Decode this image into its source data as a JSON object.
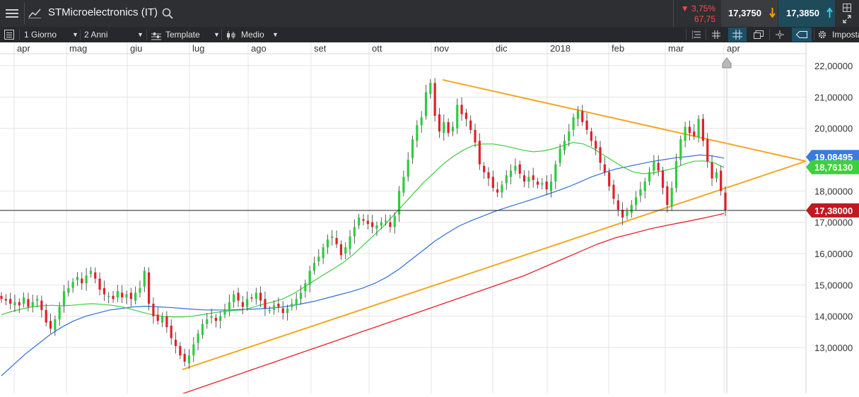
{
  "header": {
    "instrument_title": "STMicroelectronics (IT)",
    "change_percent": "▼ 3,75%",
    "change_value": "67,75",
    "sell_price": "17,3750",
    "buy_price": "17,3850",
    "icons": [
      "menu-icon",
      "chart-line-icon",
      "search-icon",
      "arrow-down-icon",
      "arrow-up-icon",
      "grid-icon",
      "expand-icon"
    ]
  },
  "toolbar": {
    "interval": "1 Giorno",
    "range": "2 Anni",
    "template": "Template",
    "indicator": "Medio",
    "settings": "Imposta"
  },
  "colors": {
    "up_candle": "#2ecc40",
    "down_candle": "#e0202a",
    "trendline": "#f5a623",
    "ma_green": "#3ecf3e",
    "ma_blue": "#2f6fd8",
    "ma_red": "#e8202a",
    "price_line": "#222222"
  },
  "chart_data": {
    "type": "candlestick",
    "x_labels": [
      "apr",
      "mag",
      "giu",
      "lug",
      "ago",
      "set",
      "ott",
      "nov",
      "dic",
      "2018",
      "feb",
      "mar",
      "apr"
    ],
    "y_ticks": [
      "22,00000",
      "21,00000",
      "20,00000",
      "18,00000",
      "16,00000",
      "15,00000",
      "14,00000",
      "13,00000",
      "17,00000"
    ],
    "y_tick_values": [
      22,
      21,
      20,
      18,
      16,
      15,
      14,
      13,
      17
    ],
    "ylim": [
      12.2,
      22.5
    ],
    "grid": true,
    "price_labels": [
      {
        "text": "19,08495",
        "value": 19.085,
        "color": "#3a7be0"
      },
      {
        "text": "18,76130",
        "value": 18.76,
        "color": "#3ecf3e"
      },
      {
        "text": "17,38000",
        "value": 17.38,
        "color": "#c0191f"
      }
    ],
    "current_price": 17.38,
    "closes": [
      14.55,
      14.5,
      14.4,
      14.45,
      14.35,
      14.6,
      14.3,
      14.45,
      14.55,
      14.2,
      13.8,
      13.6,
      13.9,
      14.3,
      14.8,
      14.9,
      15.1,
      15.25,
      15.05,
      15.3,
      15.45,
      15.2,
      14.85,
      14.7,
      14.65,
      14.55,
      14.8,
      14.6,
      14.7,
      14.55,
      14.75,
      14.9,
      15.45,
      14.4,
      14.0,
      13.85,
      14.0,
      13.65,
      13.3,
      13.05,
      12.75,
      12.55,
      12.75,
      13.1,
      13.45,
      13.75,
      13.9,
      14.0,
      13.85,
      14.0,
      14.2,
      14.45,
      14.7,
      14.5,
      14.3,
      14.55,
      14.6,
      14.75,
      14.5,
      14.25,
      14.2,
      14.35,
      14.3,
      14.1,
      14.25,
      14.4,
      14.55,
      14.75,
      15.05,
      15.45,
      15.7,
      15.9,
      16.2,
      16.45,
      16.55,
      16.3,
      15.95,
      16.2,
      16.55,
      16.85,
      17.15,
      17.05,
      16.95,
      16.85,
      16.9,
      17.0,
      17.05,
      16.85,
      17.2,
      18.0,
      18.45,
      19.0,
      19.65,
      20.1,
      20.35,
      21.15,
      21.45,
      20.4,
      19.9,
      20.2,
      19.85,
      20.05,
      20.75,
      20.45,
      20.3,
      19.95,
      19.55,
      18.85,
      18.6,
      18.4,
      18.1,
      17.95,
      18.2,
      18.5,
      18.65,
      18.8,
      18.55,
      18.3,
      18.45,
      18.35,
      18.2,
      18.25,
      18.05,
      18.3,
      18.85,
      19.35,
      19.6,
      19.9,
      20.35,
      20.55,
      20.2,
      19.95,
      19.6,
      19.35,
      18.9,
      18.6,
      18.15,
      17.75,
      17.4,
      17.15,
      17.35,
      17.55,
      17.8,
      18.05,
      18.3,
      18.6,
      18.95,
      18.65,
      18.1,
      17.55,
      18.1,
      18.95,
      19.65,
      20.05,
      19.85,
      19.75,
      20.3,
      19.6,
      18.95,
      18.4,
      18.6,
      18.0,
      17.38
    ],
    "ma_green": [
      14.05,
      14.15,
      14.23,
      14.3,
      14.33,
      14.35,
      14.33,
      14.35,
      14.38,
      14.4,
      14.38,
      14.35,
      14.3,
      14.22,
      14.13,
      14.05,
      14.0,
      13.98,
      13.98,
      14.0,
      14.05,
      14.1,
      14.15,
      14.18,
      14.2,
      14.28,
      14.38,
      14.45,
      14.55,
      14.7,
      14.9,
      15.1,
      15.3,
      15.5,
      15.7,
      15.95,
      16.25,
      16.55,
      16.85,
      17.2,
      17.55,
      17.9,
      18.25,
      18.55,
      18.85,
      19.1,
      19.3,
      19.45,
      19.5,
      19.5,
      19.45,
      19.38,
      19.3,
      19.25,
      19.28,
      19.35,
      19.45,
      19.55,
      19.5,
      19.35,
      19.15,
      18.95,
      18.75,
      18.6,
      18.55,
      18.58,
      18.65,
      18.72,
      18.85,
      18.95,
      18.96,
      18.9,
      18.75
    ],
    "ma_blue": [
      12.1,
      12.45,
      12.8,
      13.1,
      13.4,
      13.65,
      13.85,
      14.0,
      14.1,
      14.2,
      14.25,
      14.3,
      14.32,
      14.3,
      14.28,
      14.25,
      14.22,
      14.2,
      14.2,
      14.2,
      14.22,
      14.23,
      14.25,
      14.28,
      14.33,
      14.4,
      14.48,
      14.58,
      14.68,
      14.78,
      14.9,
      15.05,
      15.25,
      15.5,
      15.8,
      16.1,
      16.4,
      16.65,
      16.88,
      17.05,
      17.2,
      17.35,
      17.48,
      17.6,
      17.72,
      17.85,
      17.98,
      18.12,
      18.28,
      18.45,
      18.58,
      18.7,
      18.78,
      18.86,
      18.94,
      19.0,
      19.06,
      19.1,
      19.15,
      19.12,
      19.05
    ],
    "ma_red": [
      11.5,
      11.7,
      11.9,
      12.1,
      12.3,
      12.5,
      12.7,
      12.9,
      13.1,
      13.3,
      13.5,
      13.7,
      13.9,
      14.1,
      14.3,
      14.5,
      14.7,
      14.9,
      15.1,
      15.3,
      15.55,
      15.8,
      16.05,
      16.3,
      16.5,
      16.65,
      16.8,
      16.92,
      17.03,
      17.15,
      17.28
    ],
    "trendlines": [
      {
        "from": [
          "lug",
          12.3
        ],
        "to": [
          "apr",
          18.95
        ]
      },
      {
        "from": [
          "nov",
          21.55
        ],
        "to": [
          "apr",
          18.95
        ]
      }
    ]
  }
}
